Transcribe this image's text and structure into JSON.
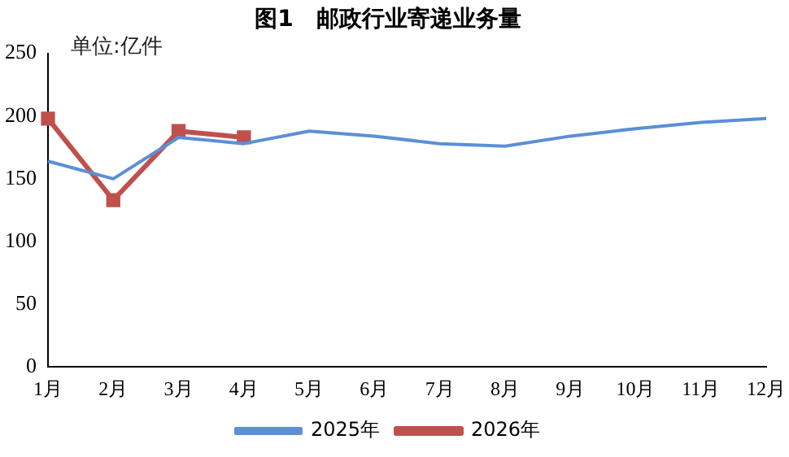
{
  "chart_data": {
    "type": "line",
    "title": "图1　邮政行业寄递业务量",
    "annotations": [
      "单位:亿件"
    ],
    "categories": [
      "1月",
      "2月",
      "3月",
      "4月",
      "5月",
      "6月",
      "7月",
      "8月",
      "9月",
      "10月",
      "11月",
      "12月"
    ],
    "series": [
      {
        "name": "2025年",
        "color": "#5b8fd6",
        "marker": "none",
        "values": [
          164,
          150,
          183,
          178,
          188,
          184,
          178,
          176,
          184,
          190,
          195,
          198
        ]
      },
      {
        "name": "2026年",
        "color": "#c0504d",
        "marker": "square",
        "values": [
          198,
          133,
          188,
          183,
          null,
          null,
          null,
          null,
          null,
          null,
          null,
          null
        ]
      }
    ],
    "ylim": [
      0,
      250
    ],
    "yticks": [
      0,
      50,
      100,
      150,
      200,
      250
    ],
    "grid": false,
    "legend": "bottom"
  }
}
